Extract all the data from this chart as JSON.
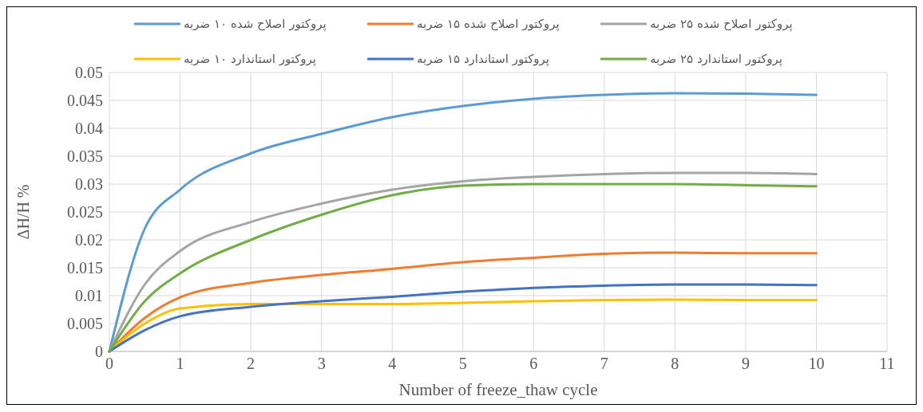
{
  "chart_data": {
    "type": "line",
    "xlabel": "Number of freeze_thaw cycle",
    "ylabel": "ΔH/H %",
    "x": [
      0,
      0.5,
      1,
      2,
      3,
      4,
      5,
      6,
      7,
      8,
      9,
      10
    ],
    "xlim": [
      0,
      11
    ],
    "xticks": [
      0,
      1,
      2,
      3,
      4,
      5,
      6,
      7,
      8,
      9,
      10,
      11
    ],
    "ylim": [
      0,
      0.05
    ],
    "yticks": [
      0,
      0.005,
      0.01,
      0.015,
      0.02,
      0.025,
      0.03,
      0.035,
      0.04,
      0.045,
      0.05
    ],
    "grid": true,
    "legend": "top",
    "marker": "none",
    "line_style": "solid",
    "series": [
      {
        "name": "پروکتور اصلاح شده ۱۰ ضربه",
        "color": "#5b9bd5",
        "values": [
          0,
          0.022,
          0.029,
          0.0355,
          0.039,
          0.042,
          0.044,
          0.0453,
          0.046,
          0.0463,
          0.0462,
          0.046
        ]
      },
      {
        "name": "پروکتور اصلاح شده ۱۵ ضربه",
        "color": "#ed7d31",
        "values": [
          0,
          0.006,
          0.0097,
          0.0123,
          0.0137,
          0.0148,
          0.016,
          0.0168,
          0.0175,
          0.0177,
          0.0176,
          0.0176
        ]
      },
      {
        "name": "پروکتور اصلاح شده ۲۵ ضربه",
        "color": "#a5a5a5",
        "values": [
          0,
          0.012,
          0.018,
          0.0232,
          0.0265,
          0.029,
          0.0305,
          0.0313,
          0.0318,
          0.032,
          0.032,
          0.0318
        ]
      },
      {
        "name": "پروکتور استاندارد ۱۰ ضربه",
        "color": "#ffc000",
        "values": [
          0,
          0.005,
          0.0077,
          0.0085,
          0.0085,
          0.0085,
          0.0087,
          0.009,
          0.0092,
          0.0093,
          0.0092,
          0.0092
        ]
      },
      {
        "name": "پروکتور استاندارد ۱۵ ضربه",
        "color": "#4472c4",
        "values": [
          0,
          0.0038,
          0.0063,
          0.008,
          0.009,
          0.0098,
          0.0107,
          0.0114,
          0.0118,
          0.012,
          0.012,
          0.0119
        ]
      },
      {
        "name": "پروکتور استاندارد ۲۵ ضربه",
        "color": "#70ad47",
        "values": [
          0,
          0.009,
          0.014,
          0.02,
          0.0245,
          0.028,
          0.0297,
          0.03,
          0.03,
          0.03,
          0.0298,
          0.0296
        ]
      }
    ]
  }
}
